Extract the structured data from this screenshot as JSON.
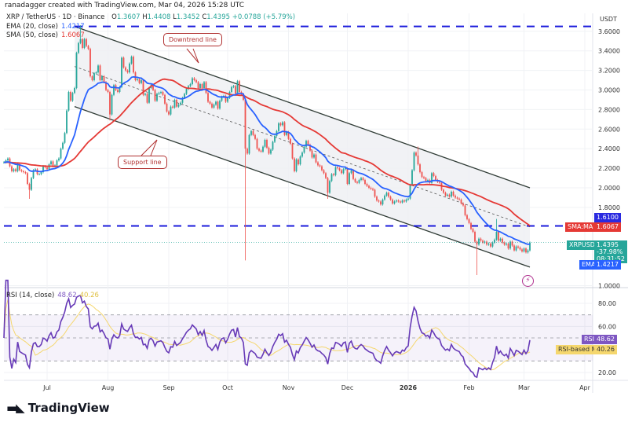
{
  "credit": "ranadagger created with TradingView.com, Mar 04, 2026 15:28 UTC",
  "legend": {
    "symbol": "XRP / TetherUS · 1D · Binance",
    "o_label": "O",
    "o": "1.3607",
    "h_label": "H",
    "h": "1.4408",
    "l_label": "L",
    "l": "1.3452",
    "c_label": "C",
    "c": "1.4395",
    "change": "+0.0788 (+5.79%)",
    "ema_label": "EMA (20, close)",
    "ema_value": "1.4217",
    "sma_label": "SMA (50, close)",
    "sma_value": "1.6067",
    "rsi_label": "RSI (14, close)",
    "rsi_value": "48.62",
    "rsi_ma_value": "40.26"
  },
  "price_axis": {
    "currency": "USDT",
    "ticks": [
      "3.6000",
      "3.4000",
      "3.2000",
      "3.0000",
      "2.8000",
      "2.6000",
      "2.4000",
      "2.2000",
      "2.0000",
      "1.8000",
      "1.0000"
    ],
    "labels": {
      "level": "1.6100",
      "sma_name": "SMA:MA",
      "sma": "1.6067",
      "symbol": "XRPUSDT",
      "last": "1.4395",
      "last_change": "-37.98%",
      "countdown": "08:31:52",
      "ema_name": "EMA",
      "ema": "1.4217"
    }
  },
  "rsi_axis": {
    "ticks": [
      "80.00",
      "60.00",
      "20.00"
    ],
    "rsi_name": "RSI",
    "rsi": "48.62",
    "ma_name": "RSI-based MA",
    "ma": "40.26"
  },
  "time_axis": [
    "Jul",
    "Aug",
    "Sep",
    "Oct",
    "Nov",
    "Dec",
    "2026",
    "Feb",
    "Mar",
    "Apr"
  ],
  "annotations": {
    "downtrend": "Downtrend line",
    "support": "Support line"
  },
  "brand": "TradingView",
  "colors": {
    "up": "#26a69a",
    "down": "#ef5350",
    "ema": "#2962ff",
    "sma": "#e53935",
    "rsi": "#673ab7",
    "rsi_ma": "#f5d76e",
    "level": "#1a1adb",
    "channel": "#2f3b35",
    "channel_fill": "#eef0f3"
  },
  "chart_data": [
    {
      "type": "candlestick",
      "start_date": "2025-06-09",
      "interval": "1D",
      "closes": [
        2.26,
        2.28,
        2.3,
        2.22,
        2.17,
        2.19,
        2.17,
        2.24,
        2.18,
        2.17,
        2.16,
        2.15,
        2.04,
        1.98,
        2.1,
        2.18,
        2.19,
        2.14,
        2.14,
        2.16,
        2.22,
        2.21,
        2.19,
        2.24,
        2.27,
        2.22,
        2.23,
        2.28,
        2.3,
        2.4,
        2.46,
        2.56,
        2.79,
        2.98,
        2.89,
        2.97,
        3.02,
        3.38,
        3.48,
        3.52,
        3.43,
        3.52,
        3.45,
        3.42,
        3.14,
        3.1,
        3.17,
        3.18,
        3.25,
        3.1,
        3.14,
        3.08,
        3.0,
        2.98,
        2.75,
        2.95,
        3.05,
        3.0,
        2.98,
        3.03,
        3.33,
        3.23,
        3.2,
        3.18,
        3.27,
        3.34,
        3.18,
        3.1,
        3.11,
        3.07,
        3.1,
        2.95,
        2.96,
        2.87,
        3.02,
        3.05,
        3.0,
        2.89,
        2.96,
        2.97,
        2.98,
        2.95,
        2.86,
        2.78,
        2.75,
        2.83,
        2.82,
        2.9,
        2.83,
        2.85,
        2.87,
        2.92,
        2.96,
        3.01,
        3.04,
        3.06,
        3.12,
        3.1,
        3.08,
        3.02,
        3.06,
        3.02,
        3.08,
        2.97,
        2.88,
        2.86,
        2.82,
        2.85,
        2.88,
        2.81,
        2.89,
        2.93,
        2.94,
        2.88,
        2.92,
        2.98,
        3.03,
        3.04,
        2.96,
        3.09,
        2.98,
        2.96,
        2.9,
        2.4,
        2.35,
        2.54,
        2.58,
        2.54,
        2.5,
        2.4,
        2.38,
        2.37,
        2.42,
        2.49,
        2.41,
        2.35,
        2.39,
        2.47,
        2.53,
        2.58,
        2.66,
        2.64,
        2.67,
        2.54,
        2.57,
        2.5,
        2.45,
        2.3,
        2.17,
        2.29,
        2.24,
        2.32,
        2.36,
        2.42,
        2.48,
        2.44,
        2.38,
        2.31,
        2.34,
        2.26,
        2.23,
        2.22,
        2.18,
        2.15,
        2.1,
        1.95,
        2.07,
        2.14,
        2.13,
        2.21,
        2.2,
        2.18,
        2.15,
        2.19,
        2.2,
        2.04,
        2.15,
        2.18,
        2.09,
        2.06,
        2.05,
        2.08,
        2.1,
        2.08,
        2.04,
        2.02,
        2.0,
        1.99,
        1.98,
        1.91,
        1.87,
        1.86,
        1.83,
        1.88,
        1.92,
        1.95,
        1.91,
        1.88,
        1.84,
        1.86,
        1.87,
        1.86,
        1.85,
        1.87,
        1.86,
        1.88,
        1.89,
        2.03,
        2.18,
        2.36,
        2.33,
        2.24,
        2.16,
        2.11,
        2.1,
        2.07,
        2.08,
        2.05,
        2.15,
        2.12,
        2.08,
        2.06,
        2.05,
        1.98,
        1.95,
        1.92,
        1.93,
        1.91,
        1.96,
        1.92,
        1.9,
        1.89,
        1.88,
        1.84,
        1.82,
        1.72,
        1.68,
        1.64,
        1.58,
        1.55,
        1.45,
        1.42,
        1.48,
        1.46,
        1.44,
        1.45,
        1.42,
        1.43,
        1.4,
        1.44,
        1.47,
        1.55,
        1.46,
        1.48,
        1.44,
        1.42,
        1.43,
        1.38,
        1.45,
        1.41,
        1.36,
        1.4,
        1.39,
        1.37,
        1.35,
        1.38,
        1.34,
        1.36,
        1.44
      ],
      "notable_wicks": [
        {
          "date": "2025-06-22",
          "low": 1.9
        },
        {
          "date": "2025-07-18",
          "high": 3.65
        },
        {
          "date": "2025-08-02",
          "low": 2.7
        },
        {
          "date": "2025-10-10",
          "low": 1.27
        },
        {
          "date": "2025-11-21",
          "low": 1.9
        },
        {
          "date": "2026-01-06",
          "high": 2.41
        },
        {
          "date": "2026-02-05",
          "low": 1.12
        },
        {
          "date": "2026-02-15",
          "high": 1.67
        }
      ],
      "indicators": [
        "EMA 20",
        "SMA 50"
      ],
      "horizontal_levels": [
        {
          "price": 3.65,
          "from": "2025-07-15"
        },
        {
          "price": 1.61
        }
      ],
      "channel": {
        "upper": [
          [
            "2025-07-15",
            3.65
          ],
          [
            "2026-03-04",
            2.0
          ]
        ],
        "middle": [
          [
            "2025-07-15",
            3.24
          ],
          [
            "2026-03-04",
            1.6
          ]
        ],
        "lower": [
          [
            "2025-07-15",
            2.83
          ],
          [
            "2026-03-04",
            1.19
          ]
        ]
      },
      "ylim": [
        0.95,
        3.72
      ]
    },
    {
      "type": "line",
      "title": "RSI (14, close)",
      "series": [
        "RSI",
        "RSI-based MA"
      ],
      "bands": [
        30,
        50,
        70
      ],
      "ylim": [
        10,
        90
      ]
    }
  ]
}
